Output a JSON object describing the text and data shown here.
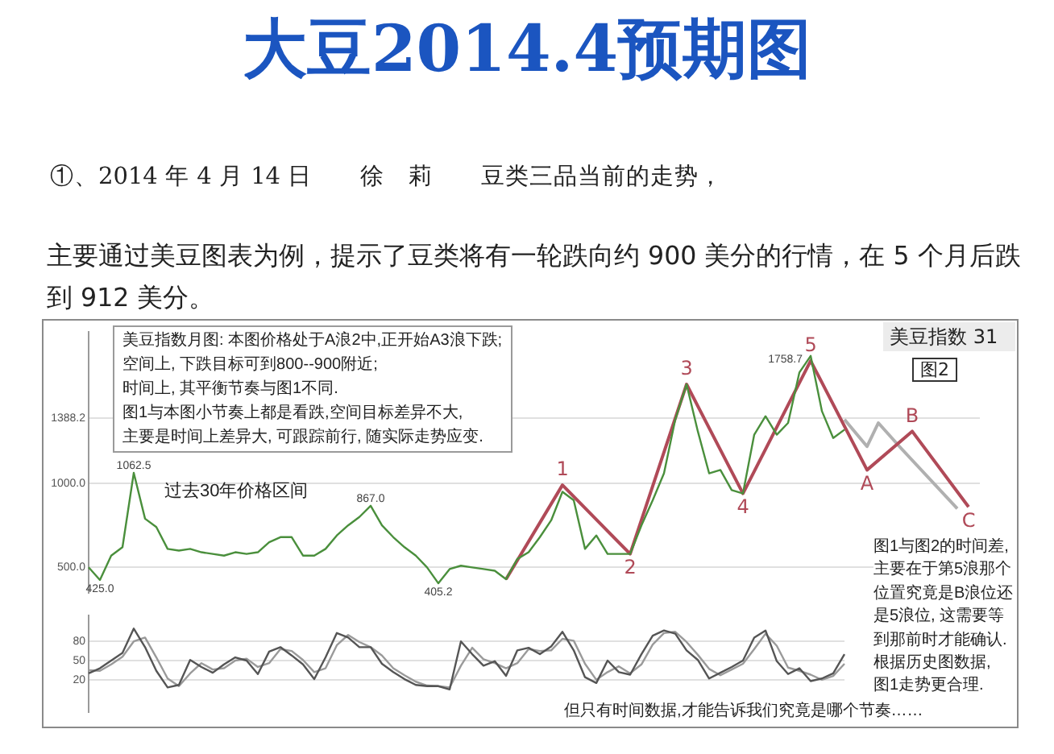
{
  "chart_data": [
    {
      "type": "line",
      "title": "大豆2014.4预期图",
      "subtitle": "①、2014 年 4 月 14 日　　徐　莉　　豆类三品当前的走势，",
      "annotations": [
        "主要通过美豆图表为例，提示了豆类将有一轮跌向约 900 美分的行情，在 5 个月后跌到 912 美分。",
        "美豆指数月图: 本图价格处于A浪2中,正开始A3浪下跌;",
        "空间上, 下跌目标可到800--900附近;",
        "时间上, 其平衡节奏与图1不同.",
        "图1与本图小节奏上都是看跌,空间目标差异不大,",
        "主要是时间上差异大, 可跟踪前行, 随实际走势应变.",
        "过去30年价格区间",
        "美豆指数 31",
        "图2",
        "图1与图2的时间差,",
        "主要在于第5浪那个",
        "位置究竟是B浪位还",
        "是5浪位, 这需要等",
        "到那前时才能确认.",
        "根据历史图数据,",
        "图1走势更合理.",
        "但只有时间数据,才能告诉我们究竟是哪个节奏……",
        {
          "text": "1",
          "y": 990
        },
        {
          "text": "2",
          "y": 580
        },
        {
          "text": "3",
          "y": 1590
        },
        {
          "text": "4",
          "y": 940
        },
        {
          "text": "5",
          "y": 1730
        },
        {
          "text": "A",
          "y": 1080
        },
        {
          "text": "B",
          "y": 1310
        },
        {
          "text": "C",
          "y": 860
        }
      ],
      "categories": [
        null,
        null,
        null,
        null,
        null,
        null,
        null,
        null,
        null,
        null,
        null,
        null,
        null,
        null,
        null,
        null,
        null,
        null,
        null,
        null,
        null,
        null,
        null,
        null,
        null,
        null,
        null,
        null,
        null,
        null,
        null,
        null,
        null,
        null,
        null,
        null,
        null,
        null,
        null,
        null,
        null,
        null,
        null,
        null,
        null,
        null,
        null,
        null,
        null,
        null,
        null,
        null,
        null,
        null,
        null,
        null,
        null,
        null,
        null,
        null,
        null,
        null,
        null,
        null,
        null,
        null,
        null,
        null,
        null,
        null,
        null,
        null,
        null,
        null,
        null,
        null,
        null,
        null,
        null,
        null
      ],
      "ylim": [
        350,
        1900
      ],
      "yticks": [
        {
          "value": 500,
          "label": "500.0"
        },
        {
          "value": 1000,
          "label": "1000.0"
        },
        {
          "value": 1388.2,
          "label": "1388.2"
        }
      ],
      "tick_labels": "y",
      "grid": "y",
      "series": [
        {
          "color": "#4a8f3c",
          "values": [
            500,
            425.0,
            570,
            620,
            1062.5,
            790,
            740,
            610,
            600,
            610,
            590,
            580,
            570,
            590,
            580,
            590,
            650,
            680,
            680,
            570,
            570,
            610,
            690,
            750,
            800,
            867.0,
            750,
            680,
            620,
            570,
            500,
            405.2,
            490,
            510,
            500,
            490,
            480,
            430,
            550,
            590,
            680,
            780,
            950,
            900,
            610,
            690,
            580,
            580,
            580,
            750,
            900,
            1060,
            1380,
            1590,
            1310,
            1060,
            1080,
            960,
            940,
            1290,
            1400,
            1290,
            1360,
            1660,
            1758.7,
            1430,
            1270,
            1320,
            null,
            null,
            null,
            null,
            null,
            null,
            null,
            null,
            null,
            null,
            null,
            null
          ],
          "value_labels": [
            null,
            "425.0",
            null,
            null,
            "1062.5",
            null,
            null,
            null,
            null,
            null,
            null,
            null,
            null,
            null,
            null,
            null,
            null,
            null,
            null,
            null,
            null,
            null,
            null,
            null,
            null,
            "867.0",
            null,
            null,
            null,
            null,
            null,
            "405.2",
            null,
            null,
            null,
            null,
            null,
            null,
            null,
            null,
            null,
            null,
            null,
            null,
            null,
            null,
            null,
            null,
            null,
            null,
            null,
            null,
            null,
            null,
            null,
            null,
            null,
            null,
            null,
            null,
            null,
            null,
            null,
            null,
            "1758.7",
            null,
            null,
            null,
            null,
            null,
            null,
            null,
            null,
            null,
            null,
            null,
            null,
            null,
            null,
            null
          ]
        },
        {
          "color": "#b04a58",
          "values": [
            null,
            null,
            null,
            null,
            null,
            null,
            null,
            null,
            null,
            null,
            null,
            null,
            null,
            null,
            null,
            null,
            null,
            null,
            null,
            null,
            null,
            null,
            null,
            null,
            null,
            null,
            null,
            null,
            null,
            null,
            null,
            null,
            null,
            null,
            null,
            null,
            null,
            430,
            null,
            null,
            null,
            null,
            990,
            null,
            null,
            null,
            null,
            null,
            580,
            null,
            null,
            null,
            null,
            1590,
            null,
            null,
            null,
            null,
            940,
            null,
            null,
            null,
            null,
            null,
            1730,
            null,
            null,
            null,
            null,
            1080,
            null,
            null,
            null,
            1310,
            null,
            null,
            null,
            null,
            860,
            null
          ]
        },
        {
          "color": "#b0b0b0",
          "values": [
            null,
            null,
            null,
            null,
            null,
            null,
            null,
            null,
            null,
            null,
            null,
            null,
            null,
            null,
            null,
            null,
            null,
            null,
            null,
            null,
            null,
            null,
            null,
            null,
            null,
            null,
            null,
            null,
            null,
            null,
            null,
            null,
            null,
            null,
            null,
            null,
            null,
            null,
            null,
            null,
            null,
            null,
            null,
            null,
            null,
            null,
            null,
            null,
            null,
            null,
            null,
            null,
            null,
            null,
            null,
            null,
            null,
            null,
            null,
            null,
            null,
            null,
            null,
            null,
            null,
            null,
            null,
            1380,
            null,
            1220,
            1360,
            null,
            1210,
            null,
            null,
            null,
            null,
            850,
            null,
            null
          ]
        }
      ]
    },
    {
      "type": "line",
      "categories": [
        null,
        null,
        null,
        null,
        null,
        null,
        null,
        null,
        null,
        null,
        null,
        null,
        null,
        null,
        null,
        null,
        null,
        null,
        null,
        null,
        null,
        null,
        null,
        null,
        null,
        null,
        null,
        null,
        null,
        null,
        null,
        null,
        null,
        null,
        null,
        null,
        null,
        null,
        null,
        null,
        null,
        null,
        null,
        null,
        null,
        null,
        null,
        null,
        null,
        null,
        null,
        null,
        null,
        null,
        null,
        null,
        null,
        null,
        null,
        null,
        null,
        null,
        null,
        null,
        null,
        null,
        null,
        null
      ],
      "ylim": [
        -30,
        120
      ],
      "yticks": [
        20,
        50,
        80
      ],
      "tick_labels": "y",
      "grid": "y",
      "series": [
        {
          "color": "#555555",
          "values": [
            30,
            38,
            50,
            62,
            100,
            71,
            34,
            8,
            12,
            51,
            40,
            31,
            44,
            55,
            50,
            29,
            64,
            71,
            58,
            44,
            21,
            55,
            93,
            86,
            71,
            71,
            45,
            32,
            21,
            12,
            10,
            10,
            5,
            80,
            60,
            42,
            49,
            26,
            66,
            70,
            60,
            72,
            95,
            66,
            24,
            15,
            50,
            32,
            28,
            60,
            89,
            97,
            92,
            66,
            51,
            22,
            31,
            40,
            50,
            86,
            97,
            49,
            29,
            38,
            18,
            22,
            30,
            60
          ]
        },
        {
          "color": "#9a9a9a",
          "values": [
            35,
            34,
            44,
            56,
            80,
            86,
            55,
            22,
            10,
            30,
            46,
            36,
            38,
            50,
            53,
            40,
            46,
            68,
            65,
            51,
            32,
            38,
            74,
            90,
            79,
            71,
            58,
            38,
            27,
            17,
            11,
            10,
            8,
            42,
            70,
            52,
            46,
            38,
            46,
            68,
            65,
            66,
            84,
            81,
            45,
            20,
            32,
            41,
            30,
            44,
            75,
            93,
            95,
            79,
            59,
            37,
            27,
            36,
            45,
            68,
            92,
            73,
            39,
            34,
            28,
            20,
            26,
            45
          ]
        }
      ]
    }
  ]
}
